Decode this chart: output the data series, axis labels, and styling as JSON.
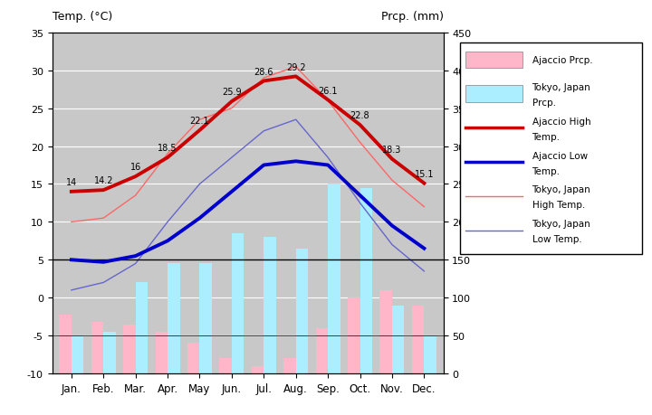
{
  "months": [
    "Jan.",
    "Feb.",
    "Mar.",
    "Apr.",
    "May",
    "Jun.",
    "Jul.",
    "Aug.",
    "Sep.",
    "Oct.",
    "Nov.",
    "Dec."
  ],
  "ajaccio_high": [
    14,
    14.2,
    16,
    18.5,
    22.1,
    25.9,
    28.6,
    29.2,
    26.1,
    22.8,
    18.3,
    15.1
  ],
  "ajaccio_low": [
    5,
    4.7,
    5.5,
    7.5,
    10.5,
    14,
    17.5,
    18,
    17.5,
    13.5,
    9.5,
    6.5
  ],
  "tokyo_high": [
    10,
    10.5,
    13.5,
    19,
    23.5,
    25,
    29,
    30.5,
    26,
    20.5,
    15.5,
    12
  ],
  "tokyo_low": [
    1,
    2,
    4.5,
    10,
    15,
    18.5,
    22,
    23.5,
    18.5,
    12.5,
    7,
    3.5
  ],
  "ajaccio_prcp_mm": [
    78,
    68,
    65,
    55,
    40,
    20,
    10,
    20,
    60,
    100,
    110,
    90
  ],
  "tokyo_prcp_mm": [
    50,
    55,
    120,
    145,
    145,
    185,
    180,
    165,
    250,
    245,
    90,
    50
  ],
  "temp_ylim": [
    -10,
    35
  ],
  "prcp_ylim": [
    0,
    450
  ],
  "plot_bg_color": "#c8c8c8",
  "fig_bg_color": "#ffffff",
  "ajaccio_high_color": "#cc0000",
  "ajaccio_low_color": "#0000cc",
  "tokyo_high_color": "#ff6666",
  "tokyo_low_color": "#6666cc",
  "ajaccio_prcp_color": "#ffb6c8",
  "tokyo_prcp_color": "#aaeeff",
  "high_labels": [
    "14",
    "14.2",
    "16",
    "18.5",
    "22.1",
    "25.9",
    "28.6",
    "29.2",
    "26.1",
    "22.8",
    "18.3",
    "15.1"
  ],
  "grid_color": "#ffffff",
  "title_left": "Temp. (°C)",
  "title_right": "Prcp. (mm)"
}
